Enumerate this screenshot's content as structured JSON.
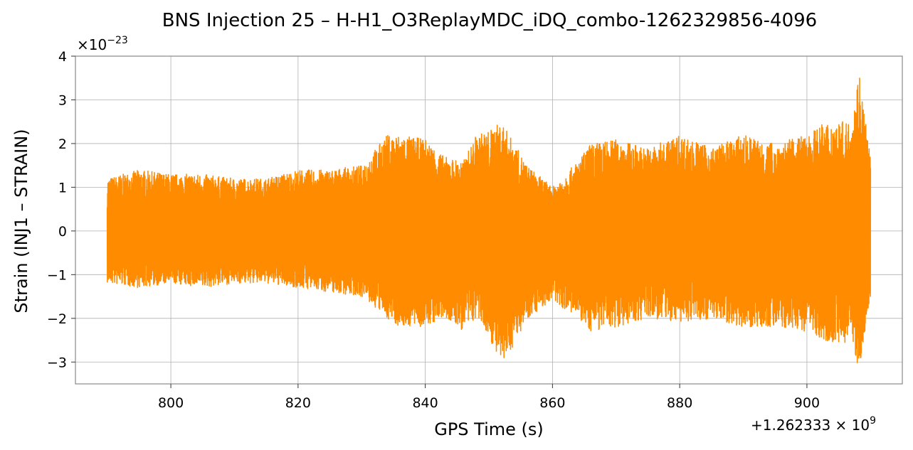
{
  "chart_data": {
    "type": "line",
    "title": "BNS Injection 25 – H-H1_O3ReplayMDC_iDQ_combo-1262329856-4096",
    "xlabel": "GPS Time (s)",
    "ylabel": "Strain (INJ1 – STRAIN)",
    "x_offset_label": "+1.262333 × 10",
    "x_offset_exponent": "9",
    "y_scale_label": "×10",
    "y_scale_exponent": "−23",
    "xlim": [
      785,
      915
    ],
    "ylim": [
      -3.5,
      4.0
    ],
    "x_ticks": [
      800,
      820,
      840,
      860,
      880,
      900
    ],
    "x_tick_labels": [
      "800",
      "820",
      "840",
      "860",
      "880",
      "900"
    ],
    "y_ticks": [
      -3,
      -2,
      -1,
      0,
      1,
      2,
      3,
      4
    ],
    "y_tick_labels": [
      "−3",
      "−2",
      "−1",
      "0",
      "1",
      "2",
      "3",
      "4"
    ],
    "grid": true,
    "series": [
      {
        "color": "#ff8c00",
        "x_range": [
          790,
          910
        ],
        "envelope_x": [
          790,
          795,
          800,
          805,
          810,
          815,
          820,
          825,
          830,
          834,
          836,
          840,
          843,
          846,
          848,
          850,
          852,
          856,
          860,
          864,
          866,
          870,
          875,
          880,
          885,
          890,
          895,
          900,
          903,
          905,
          907,
          908.2,
          910
        ],
        "envelope_upper": [
          1.2,
          1.4,
          1.3,
          1.3,
          1.2,
          1.2,
          1.4,
          1.4,
          1.5,
          2.2,
          2.2,
          2.1,
          1.7,
          1.6,
          2.2,
          2.3,
          2.5,
          1.5,
          1.0,
          1.6,
          2.0,
          2.1,
          1.9,
          2.2,
          1.9,
          2.2,
          2.0,
          2.2,
          2.5,
          2.5,
          2.5,
          3.7,
          1.7
        ],
        "envelope_lower": [
          -1.2,
          -1.3,
          -1.2,
          -1.3,
          -1.2,
          -1.2,
          -1.3,
          -1.4,
          -1.5,
          -2.0,
          -2.2,
          -2.2,
          -2.0,
          -2.3,
          -2.0,
          -2.4,
          -3.15,
          -2.0,
          -1.6,
          -2.0,
          -2.3,
          -2.2,
          -2.0,
          -2.1,
          -2.0,
          -2.2,
          -2.2,
          -2.3,
          -2.5,
          -2.6,
          -2.5,
          -3.2,
          -1.5
        ]
      }
    ]
  }
}
